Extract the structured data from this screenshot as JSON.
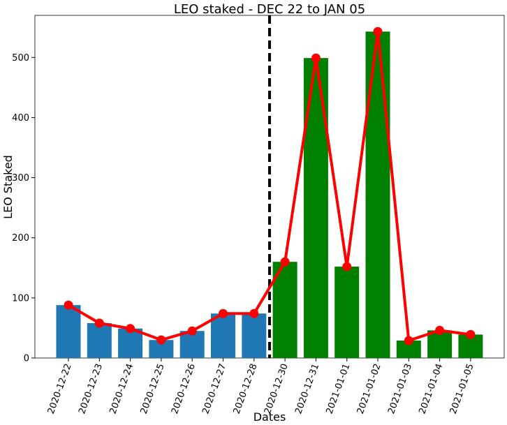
{
  "chart_data": {
    "type": "bar",
    "title": "LEO staked - DEC 22 to JAN 05",
    "xlabel": "Dates",
    "ylabel": "LEO Staked",
    "ylim": [
      0,
      570
    ],
    "yticks": [
      0,
      100,
      200,
      300,
      400,
      500
    ],
    "categories": [
      "2020-12-22",
      "2020-12-23",
      "2020-12-24",
      "2020-12-25",
      "2020-12-26",
      "2020-12-27",
      "2020-12-28",
      "2020-12-30",
      "2020-12-31",
      "2021-01-01",
      "2021-01-02",
      "2021-01-03",
      "2021-01-04",
      "2021-01-05"
    ],
    "values": [
      88,
      58,
      49,
      30,
      45,
      74,
      74,
      160,
      499,
      152,
      543,
      29,
      46,
      39
    ],
    "bar_colors": [
      "#1f77b4",
      "#1f77b4",
      "#1f77b4",
      "#1f77b4",
      "#1f77b4",
      "#1f77b4",
      "#1f77b4",
      "#008000",
      "#008000",
      "#008000",
      "#008000",
      "#008000",
      "#008000",
      "#008000"
    ],
    "line_color": "#ff0000",
    "divider_after_index": 6
  }
}
